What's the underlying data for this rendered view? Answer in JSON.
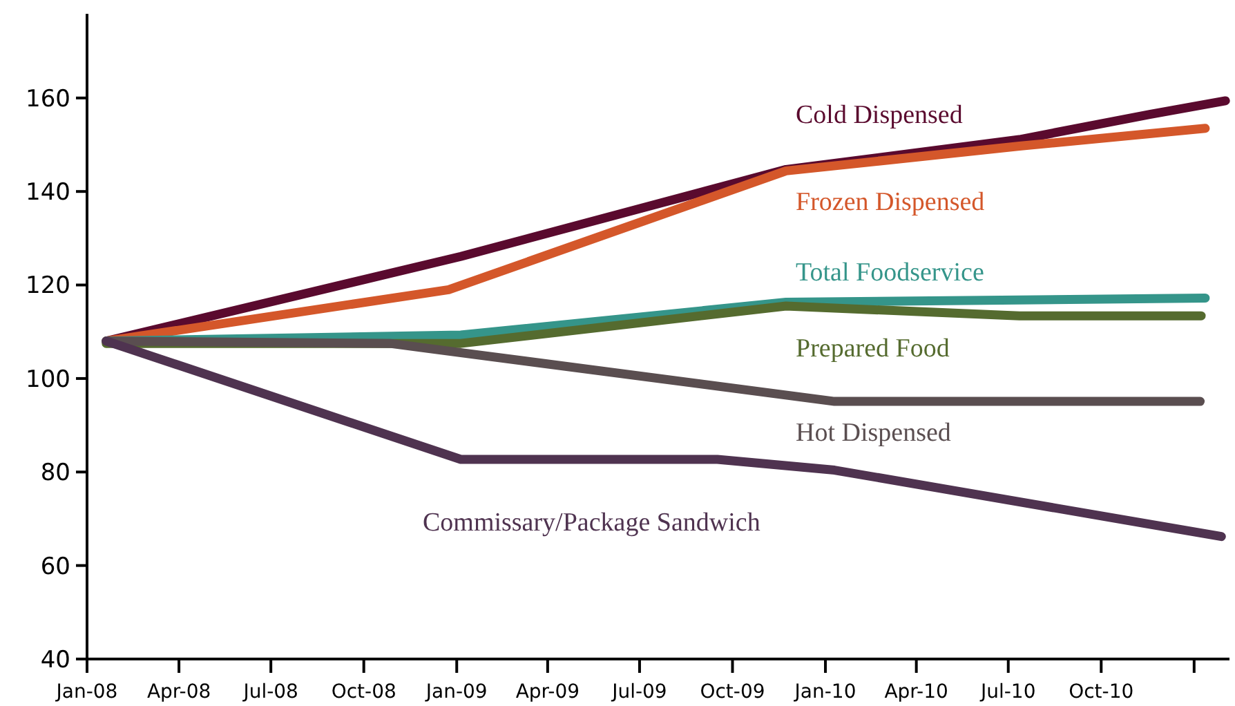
{
  "chart_data": {
    "type": "line",
    "xlim": [
      "2008-01-01",
      "2011-02-05"
    ],
    "xticks": [
      {
        "value": "2008-01-01",
        "label": "Jan-08"
      },
      {
        "value": "2008-04-01",
        "label": "Apr-08"
      },
      {
        "value": "2008-07-01",
        "label": "Jul-08"
      },
      {
        "value": "2008-10-01",
        "label": "Oct-08"
      },
      {
        "value": "2009-01-01",
        "label": "Jan-09"
      },
      {
        "value": "2009-04-01",
        "label": "Apr-09"
      },
      {
        "value": "2009-07-01",
        "label": "Jul-09"
      },
      {
        "value": "2009-10-01",
        "label": "Oct-09"
      },
      {
        "value": "2010-01-01",
        "label": "Jan-10"
      },
      {
        "value": "2010-04-01",
        "label": "Apr-10"
      },
      {
        "value": "2010-07-01",
        "label": "Jul-10"
      },
      {
        "value": "2010-10-01",
        "label": "Oct-10"
      },
      {
        "value": "2011-01-01",
        "label": null
      }
    ],
    "ylim": [
      40,
      178
    ],
    "yticks": [
      40,
      60,
      80,
      100,
      120,
      140,
      160
    ],
    "grid": false,
    "series": [
      {
        "name": "Cold Dispensed",
        "color": "#5a0a2e",
        "x": [
          "2008-01-20",
          "2009-01-05",
          "2009-11-23",
          "2010-07-12",
          "2010-11-18",
          "2011-02-01"
        ],
        "values": [
          108,
          126.1,
          144.7,
          151.1,
          156.5,
          159.4
        ]
      },
      {
        "name": "Frozen Dispensed",
        "color": "#d4572a",
        "x": [
          "2008-01-20",
          "2008-12-24",
          "2009-11-23",
          "2010-07-12",
          "2011-01-12"
        ],
        "values": [
          108,
          119,
          144.4,
          149.7,
          153.5
        ]
      },
      {
        "name": "Total Foodservice",
        "color": "#35958a",
        "x": [
          "2008-01-20",
          "2009-01-05",
          "2009-11-23",
          "2011-01-12"
        ],
        "values": [
          108,
          109.3,
          116.3,
          117.2
        ]
      },
      {
        "name": "Prepared Food",
        "color": "#556b2f",
        "x": [
          "2008-01-20",
          "2009-01-05",
          "2009-11-23",
          "2010-07-12",
          "2011-01-08"
        ],
        "values": [
          107.5,
          107.5,
          115.5,
          113.4,
          113.4
        ]
      },
      {
        "name": "Hot Dispensed",
        "color": "#5a4e50",
        "x": [
          "2008-01-20",
          "2008-10-27",
          "2010-01-10",
          "2011-01-07"
        ],
        "values": [
          108,
          107.5,
          95.1,
          95.1
        ]
      },
      {
        "name": "Commissary/Package Sandwich",
        "color": "#4f3350",
        "x": [
          "2008-01-20",
          "2009-01-05",
          "2009-09-16",
          "2010-01-10",
          "2011-01-28"
        ],
        "values": [
          108,
          82.7,
          82.7,
          80.4,
          66.2
        ]
      }
    ]
  }
}
